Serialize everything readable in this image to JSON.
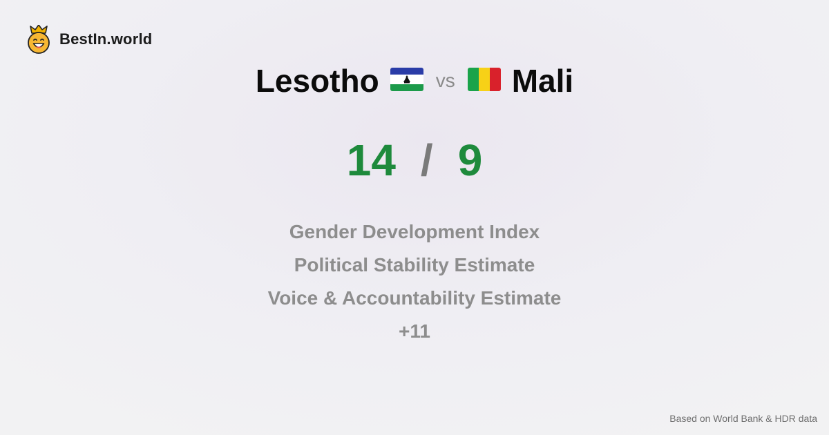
{
  "brand": {
    "name": "BestIn.world",
    "icon": "crowned-smiley-icon"
  },
  "comparison": {
    "left_country": "Lesotho",
    "left_flag": "lesotho-flag-icon",
    "vs_label": "vs",
    "right_country": "Mali",
    "right_flag": "mali-flag-icon"
  },
  "scores": {
    "left": "14",
    "separator": "/",
    "right": "9",
    "color": "#1e8a3c"
  },
  "metrics": [
    "Gender Development Index",
    "Political Stability Estimate",
    "Voice & Accountability Estimate"
  ],
  "more_label": "+11",
  "footer": {
    "source": "Based on World Bank & HDR data"
  }
}
